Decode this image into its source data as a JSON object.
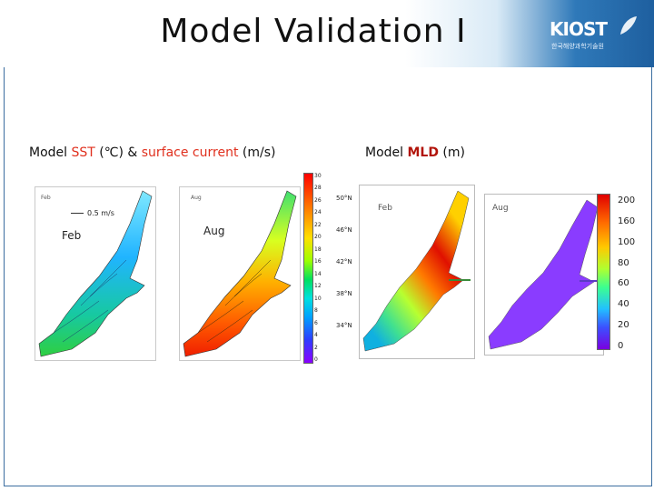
{
  "header": {
    "title": "Model Validation I",
    "logo_text": "KIOST",
    "logo_sub": "한국해양과학기술원"
  },
  "captions": {
    "sst_prefix": "Model ",
    "sst_var": "SST",
    "sst_unit": " (℃) & ",
    "sst_current": "surface current",
    "sst_current_unit": " (m/s)",
    "mld_prefix": "Model ",
    "mld_var": "MLD",
    "mld_unit": " (m)"
  },
  "sst_panels": {
    "feb_label": "Feb",
    "aug_label": "Aug",
    "feb_small": "Feb",
    "aug_small": "Aug",
    "vector_scale": "0.5 m/s"
  },
  "sst_colorbar": {
    "ticks": [
      "30",
      "28",
      "26",
      "24",
      "22",
      "20",
      "18",
      "16",
      "14",
      "12",
      "10",
      "8",
      "6",
      "4",
      "2",
      "0"
    ]
  },
  "mld_panels": {
    "feb_label": "Feb",
    "aug_label": "Aug",
    "lat_labels": [
      "50°N",
      "46°N",
      "42°N",
      "38°N",
      "34°N"
    ]
  },
  "mld_colorbar": {
    "ticks": [
      "200",
      "160",
      "100",
      "80",
      "60",
      "40",
      "20",
      "0"
    ]
  },
  "colors": {
    "header_blue": "#1e5f9f",
    "accent_red": "#e0301e",
    "frame_blue": "#3c6ea0"
  }
}
